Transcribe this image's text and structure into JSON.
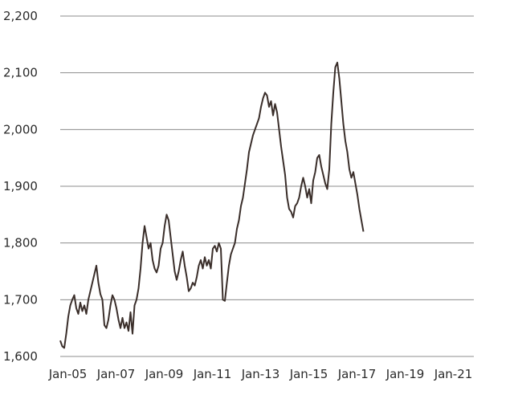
{
  "chart_data": {
    "type": "line",
    "title": "",
    "xlabel": "",
    "ylabel": "",
    "ylim": [
      1600,
      2200
    ],
    "xlim": [
      "2004-10",
      "2021-12"
    ],
    "grid": "horizontal",
    "yticks": [
      "1,600",
      "1,700",
      "1,800",
      "1,900",
      "2,000",
      "2,100",
      "2,200"
    ],
    "xticks": [
      {
        "label": "Jan-05",
        "date": "2005-01"
      },
      {
        "label": "Jan-07",
        "date": "2007-01"
      },
      {
        "label": "Jan-09",
        "date": "2009-01"
      },
      {
        "label": "Jan-11",
        "date": "2011-01"
      },
      {
        "label": "Jan-13",
        "date": "2013-01"
      },
      {
        "label": "Jan-15",
        "date": "2015-01"
      },
      {
        "label": "Jan-17",
        "date": "2017-01"
      },
      {
        "label": "Jan-19",
        "date": "2019-01"
      },
      {
        "label": "Jan-21",
        "date": "2021-01"
      }
    ],
    "series": [
      {
        "color": "#3a2e2a",
        "points": [
          [
            "2004-10",
            1628
          ],
          [
            "2004-11",
            1618
          ],
          [
            "2004-12",
            1615
          ],
          [
            "2005-01",
            1640
          ],
          [
            "2005-02",
            1670
          ],
          [
            "2005-03",
            1690
          ],
          [
            "2005-04",
            1700
          ],
          [
            "2005-05",
            1708
          ],
          [
            "2005-06",
            1685
          ],
          [
            "2005-07",
            1675
          ],
          [
            "2005-08",
            1695
          ],
          [
            "2005-09",
            1680
          ],
          [
            "2005-10",
            1690
          ],
          [
            "2005-11",
            1675
          ],
          [
            "2005-12",
            1700
          ],
          [
            "2006-01",
            1715
          ],
          [
            "2006-02",
            1730
          ],
          [
            "2006-03",
            1745
          ],
          [
            "2006-04",
            1760
          ],
          [
            "2006-05",
            1730
          ],
          [
            "2006-06",
            1710
          ],
          [
            "2006-07",
            1700
          ],
          [
            "2006-08",
            1655
          ],
          [
            "2006-09",
            1650
          ],
          [
            "2006-10",
            1665
          ],
          [
            "2006-11",
            1690
          ],
          [
            "2006-12",
            1708
          ],
          [
            "2007-01",
            1700
          ],
          [
            "2007-02",
            1685
          ],
          [
            "2007-03",
            1665
          ],
          [
            "2007-04",
            1650
          ],
          [
            "2007-05",
            1668
          ],
          [
            "2007-06",
            1650
          ],
          [
            "2007-07",
            1660
          ],
          [
            "2007-08",
            1645
          ],
          [
            "2007-09",
            1678
          ],
          [
            "2007-10",
            1640
          ],
          [
            "2007-11",
            1690
          ],
          [
            "2007-12",
            1700
          ],
          [
            "2008-01",
            1720
          ],
          [
            "2008-02",
            1755
          ],
          [
            "2008-03",
            1800
          ],
          [
            "2008-04",
            1830
          ],
          [
            "2008-05",
            1810
          ],
          [
            "2008-06",
            1790
          ],
          [
            "2008-07",
            1800
          ],
          [
            "2008-08",
            1770
          ],
          [
            "2008-09",
            1755
          ],
          [
            "2008-10",
            1748
          ],
          [
            "2008-11",
            1760
          ],
          [
            "2008-12",
            1790
          ],
          [
            "2009-01",
            1800
          ],
          [
            "2009-02",
            1830
          ],
          [
            "2009-03",
            1850
          ],
          [
            "2009-04",
            1840
          ],
          [
            "2009-05",
            1810
          ],
          [
            "2009-06",
            1780
          ],
          [
            "2009-07",
            1750
          ],
          [
            "2009-08",
            1735
          ],
          [
            "2009-09",
            1750
          ],
          [
            "2009-10",
            1770
          ],
          [
            "2009-11",
            1785
          ],
          [
            "2009-12",
            1760
          ],
          [
            "2010-01",
            1740
          ],
          [
            "2010-02",
            1715
          ],
          [
            "2010-03",
            1720
          ],
          [
            "2010-04",
            1730
          ],
          [
            "2010-05",
            1725
          ],
          [
            "2010-06",
            1740
          ],
          [
            "2010-07",
            1760
          ],
          [
            "2010-08",
            1770
          ],
          [
            "2010-09",
            1755
          ],
          [
            "2010-10",
            1775
          ],
          [
            "2010-11",
            1760
          ],
          [
            "2010-12",
            1770
          ],
          [
            "2011-01",
            1755
          ],
          [
            "2011-02",
            1790
          ],
          [
            "2011-03",
            1795
          ],
          [
            "2011-04",
            1785
          ],
          [
            "2011-05",
            1800
          ],
          [
            "2011-06",
            1790
          ],
          [
            "2011-07",
            1700
          ],
          [
            "2011-08",
            1698
          ],
          [
            "2011-09",
            1730
          ],
          [
            "2011-10",
            1760
          ],
          [
            "2011-11",
            1780
          ],
          [
            "2011-12",
            1790
          ],
          [
            "2012-01",
            1800
          ],
          [
            "2012-02",
            1825
          ],
          [
            "2012-03",
            1840
          ],
          [
            "2012-04",
            1865
          ],
          [
            "2012-05",
            1880
          ],
          [
            "2012-06",
            1905
          ],
          [
            "2012-07",
            1930
          ],
          [
            "2012-08",
            1960
          ],
          [
            "2012-09",
            1975
          ],
          [
            "2012-10",
            1990
          ],
          [
            "2012-11",
            2000
          ],
          [
            "2012-12",
            2010
          ],
          [
            "2013-01",
            2020
          ],
          [
            "2013-02",
            2040
          ],
          [
            "2013-03",
            2055
          ],
          [
            "2013-04",
            2065
          ],
          [
            "2013-05",
            2060
          ],
          [
            "2013-06",
            2040
          ],
          [
            "2013-07",
            2050
          ],
          [
            "2013-08",
            2025
          ],
          [
            "2013-09",
            2045
          ],
          [
            "2013-10",
            2030
          ],
          [
            "2013-11",
            2000
          ],
          [
            "2013-12",
            1970
          ],
          [
            "2014-01",
            1945
          ],
          [
            "2014-02",
            1920
          ],
          [
            "2014-03",
            1880
          ],
          [
            "2014-04",
            1860
          ],
          [
            "2014-05",
            1855
          ],
          [
            "2014-06",
            1845
          ],
          [
            "2014-07",
            1865
          ],
          [
            "2014-08",
            1870
          ],
          [
            "2014-09",
            1880
          ],
          [
            "2014-10",
            1900
          ],
          [
            "2014-11",
            1915
          ],
          [
            "2014-12",
            1900
          ],
          [
            "2015-01",
            1880
          ],
          [
            "2015-02",
            1895
          ],
          [
            "2015-03",
            1870
          ],
          [
            "2015-04",
            1910
          ],
          [
            "2015-05",
            1925
          ],
          [
            "2015-06",
            1950
          ],
          [
            "2015-07",
            1955
          ],
          [
            "2015-08",
            1935
          ],
          [
            "2015-09",
            1920
          ],
          [
            "2015-10",
            1905
          ],
          [
            "2015-11",
            1895
          ],
          [
            "2015-12",
            1930
          ],
          [
            "2016-01",
            2010
          ],
          [
            "2016-02",
            2065
          ],
          [
            "2016-03",
            2110
          ],
          [
            "2016-04",
            2118
          ],
          [
            "2016-05",
            2090
          ],
          [
            "2016-06",
            2050
          ],
          [
            "2016-07",
            2010
          ],
          [
            "2016-08",
            1980
          ],
          [
            "2016-09",
            1960
          ],
          [
            "2016-10",
            1930
          ],
          [
            "2016-11",
            1915
          ],
          [
            "2016-12",
            1925
          ],
          [
            "2017-01",
            1905
          ],
          [
            "2017-02",
            1885
          ],
          [
            "2017-03",
            1860
          ],
          [
            "2017-04",
            1840
          ],
          [
            "2017-05",
            1820
          ]
        ]
      }
    ]
  }
}
